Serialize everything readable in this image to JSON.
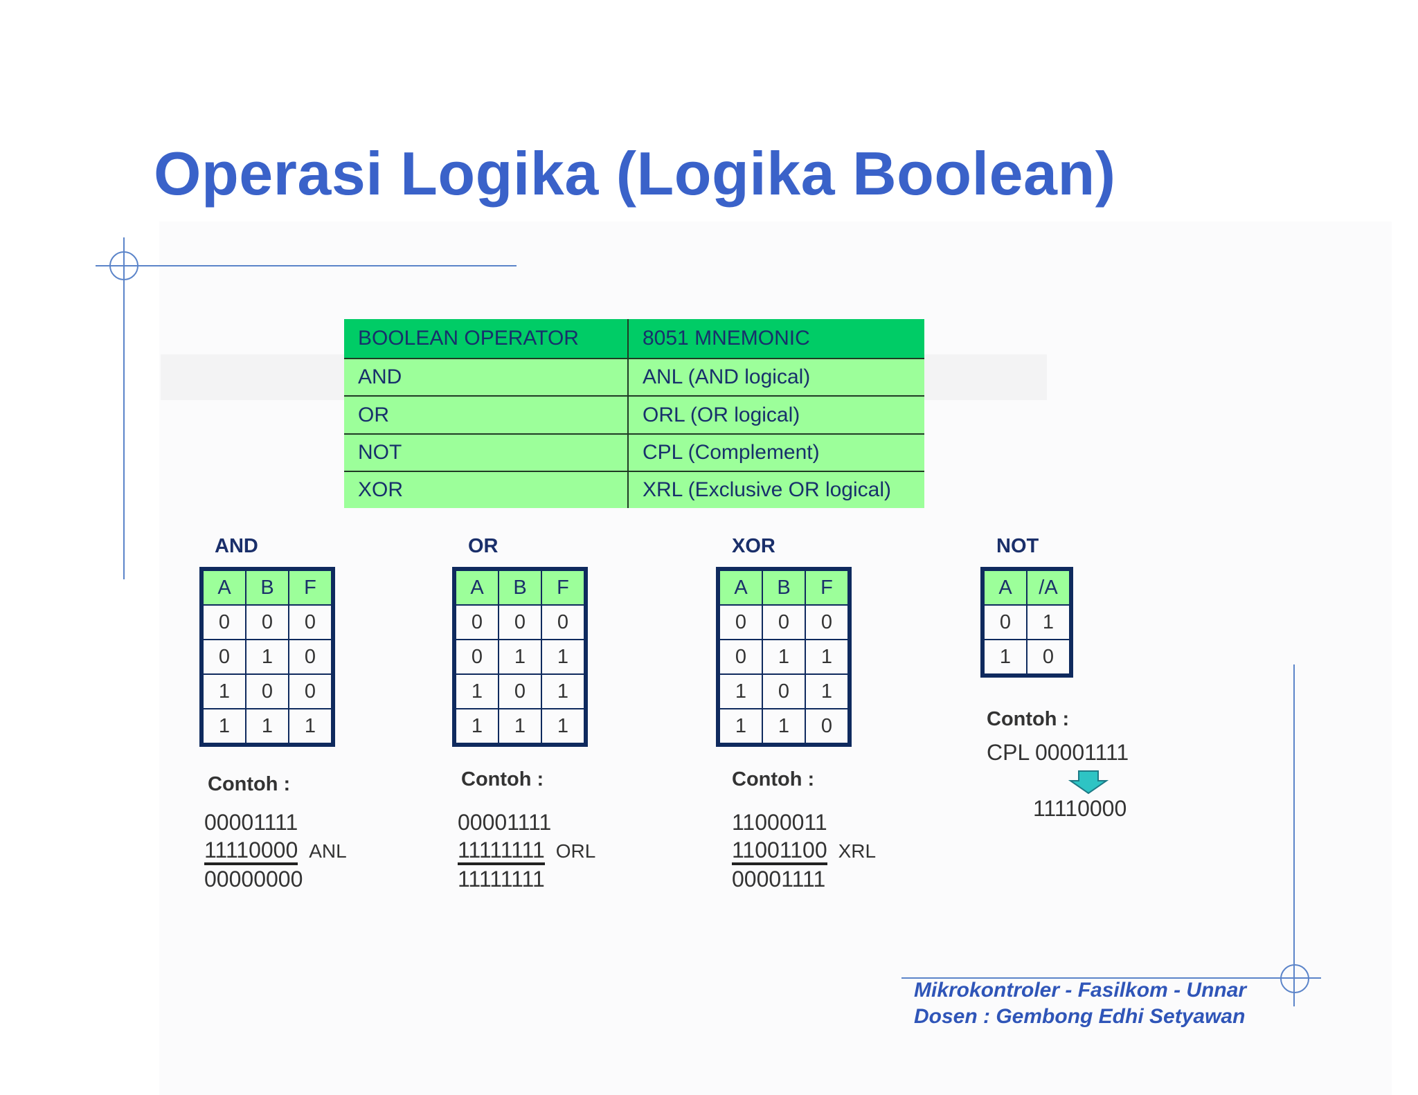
{
  "title": "Operasi Logika (Logika Boolean)",
  "mnemonic_table": {
    "headers": [
      "BOOLEAN OPERATOR",
      "8051 MNEMONIC"
    ],
    "rows": [
      [
        "AND",
        "ANL (AND logical)"
      ],
      [
        "OR",
        "ORL (OR logical)"
      ],
      [
        "NOT",
        "CPL (Complement)"
      ],
      [
        "XOR",
        "XRL (Exclusive OR logical)"
      ]
    ]
  },
  "and": {
    "label": "AND",
    "headers": [
      "A",
      "B",
      "F"
    ],
    "rows": [
      [
        "0",
        "0",
        "0"
      ],
      [
        "0",
        "1",
        "0"
      ],
      [
        "1",
        "0",
        "0"
      ],
      [
        "1",
        "1",
        "1"
      ]
    ],
    "contoh_label": "Contoh :",
    "lines": [
      "00001111",
      "11110000",
      "00000000"
    ],
    "op": "ANL"
  },
  "or": {
    "label": "OR",
    "headers": [
      "A",
      "B",
      "F"
    ],
    "rows": [
      [
        "0",
        "0",
        "0"
      ],
      [
        "0",
        "1",
        "1"
      ],
      [
        "1",
        "0",
        "1"
      ],
      [
        "1",
        "1",
        "1"
      ]
    ],
    "contoh_label": "Contoh :",
    "lines": [
      "00001111",
      "11111111",
      "11111111"
    ],
    "op": "ORL"
  },
  "xor": {
    "label": "XOR",
    "headers": [
      "A",
      "B",
      "F"
    ],
    "rows": [
      [
        "0",
        "0",
        "0"
      ],
      [
        "0",
        "1",
        "1"
      ],
      [
        "1",
        "0",
        "1"
      ],
      [
        "1",
        "1",
        "0"
      ]
    ],
    "contoh_label": "Contoh :",
    "lines": [
      "11000011",
      "11001100",
      "00001111"
    ],
    "op": "XRL"
  },
  "not": {
    "label": "NOT",
    "headers": [
      "A",
      "/A"
    ],
    "rows": [
      [
        "0",
        "1"
      ],
      [
        "1",
        "0"
      ]
    ],
    "contoh_label": "Contoh :",
    "input": "CPL 00001111",
    "result": "11110000",
    "arrow_icon": "arrow-down-icon",
    "arrow_color": "#2ec4c4"
  },
  "footer": {
    "line1": "Mikrokontroler - Fasilkom - Unnar",
    "line2": "Dosen : Gembong Edhi Setyawan"
  },
  "colors": {
    "title": "#3a62c9",
    "table_header": "#00cc66",
    "table_row": "#9cff9a",
    "table_border": "#0f2a5e",
    "footer": "#2f55b8"
  }
}
